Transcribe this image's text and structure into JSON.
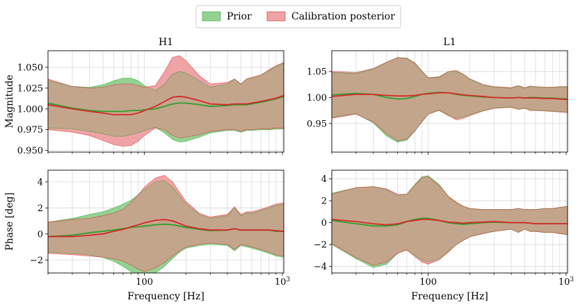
{
  "legend": {
    "entries": [
      {
        "label": "Prior",
        "color": "#2ca02c"
      },
      {
        "label": "Calibration posterior",
        "color": "#d62728"
      }
    ]
  },
  "colors": {
    "prior_fill": "#93d293",
    "post_fill": "#f0a3a6",
    "overlap_fill": "#c3a58c",
    "prior_line": "#2ca02c",
    "post_line": "#d62728"
  },
  "chart_data": [
    {
      "id": "h1-magnitude",
      "type": "area",
      "title": "H1",
      "xlabel": "",
      "ylabel": "Magnitude",
      "xscale": "log",
      "xlim": [
        20,
        1024
      ],
      "ylim": [
        0.948,
        1.07
      ],
      "yticks": [
        0.95,
        0.975,
        1.0,
        1.025,
        1.05
      ],
      "yticklabels": [
        "0.950",
        "0.975",
        "1.000",
        "1.025",
        "1.050"
      ],
      "xticks": [
        100,
        1000
      ],
      "xticklabels": [
        "",
        ""
      ],
      "x": [
        20,
        30,
        40,
        50,
        60,
        70,
        80,
        90,
        100,
        120,
        140,
        160,
        180,
        200,
        250,
        300,
        400,
        450,
        500,
        550,
        600,
        700,
        800,
        900,
        1024
      ],
      "series": [
        {
          "name": "Prior",
          "upper": [
            1.034,
            1.027,
            1.026,
            1.029,
            1.034,
            1.037,
            1.037,
            1.034,
            1.028,
            1.022,
            1.03,
            1.042,
            1.045,
            1.043,
            1.034,
            1.026,
            1.03,
            1.036,
            1.03,
            1.036,
            1.037,
            1.04,
            1.046,
            1.051,
            1.055
          ],
          "median": [
            1.007,
            1.001,
            0.998,
            0.997,
            0.997,
            0.997,
            0.998,
            0.998,
            0.999,
            1.0,
            1.003,
            1.006,
            1.007,
            1.007,
            1.005,
            1.003,
            1.004,
            1.005,
            1.005,
            1.005,
            1.006,
            1.008,
            1.01,
            1.012,
            1.015
          ],
          "lower": [
            0.977,
            0.976,
            0.973,
            0.97,
            0.967,
            0.967,
            0.969,
            0.971,
            0.974,
            0.978,
            0.971,
            0.963,
            0.96,
            0.961,
            0.966,
            0.971,
            0.974,
            0.974,
            0.972,
            0.974,
            0.974,
            0.975,
            0.975,
            0.976,
            0.976
          ]
        },
        {
          "name": "Calibration posterior",
          "upper": [
            1.036,
            1.027,
            1.025,
            1.026,
            1.029,
            1.03,
            1.03,
            1.028,
            1.026,
            1.028,
            1.045,
            1.062,
            1.064,
            1.058,
            1.04,
            1.03,
            1.032,
            1.036,
            1.03,
            1.036,
            1.038,
            1.041,
            1.047,
            1.052,
            1.056
          ],
          "median": [
            1.005,
            1.0,
            0.997,
            0.995,
            0.993,
            0.993,
            0.993,
            0.995,
            0.998,
            1.003,
            1.009,
            1.014,
            1.015,
            1.014,
            1.01,
            1.006,
            1.005,
            1.006,
            1.006,
            1.006,
            1.007,
            1.009,
            1.011,
            1.013,
            1.016
          ],
          "lower": [
            0.975,
            0.972,
            0.968,
            0.962,
            0.957,
            0.955,
            0.956,
            0.961,
            0.968,
            0.977,
            0.975,
            0.968,
            0.965,
            0.966,
            0.969,
            0.973,
            0.975,
            0.975,
            0.973,
            0.975,
            0.975,
            0.976,
            0.976,
            0.977,
            0.977
          ]
        }
      ]
    },
    {
      "id": "l1-magnitude",
      "type": "area",
      "title": "L1",
      "xlabel": "",
      "ylabel": "",
      "xscale": "log",
      "xlim": [
        20,
        1024
      ],
      "ylim": [
        0.895,
        1.09
      ],
      "yticks": [
        0.95,
        1.0,
        1.05
      ],
      "yticklabels": [
        "0.95",
        "1.00",
        "1.05"
      ],
      "xticks": [
        100,
        1000
      ],
      "xticklabels": [
        "",
        ""
      ],
      "x": [
        20,
        30,
        40,
        50,
        60,
        70,
        80,
        90,
        100,
        120,
        140,
        160,
        180,
        200,
        250,
        300,
        400,
        450,
        500,
        550,
        600,
        700,
        800,
        900,
        1024
      ],
      "series": [
        {
          "name": "Prior",
          "upper": [
            1.048,
            1.046,
            1.055,
            1.068,
            1.077,
            1.076,
            1.067,
            1.051,
            1.038,
            1.04,
            1.05,
            1.05,
            1.044,
            1.035,
            1.024,
            1.02,
            1.018,
            1.022,
            1.018,
            1.021,
            1.02,
            1.019,
            1.019,
            1.02,
            1.02
          ],
          "median": [
            1.005,
            1.008,
            1.006,
            1.0,
            0.997,
            0.998,
            1.002,
            1.006,
            1.008,
            1.01,
            1.009,
            1.006,
            1.004,
            1.003,
            1.001,
            1.0,
            0.999,
            1.0,
            0.999,
            1.0,
            1.0,
            0.999,
            0.999,
            0.998,
            0.997
          ],
          "lower": [
            0.962,
            0.969,
            0.951,
            0.926,
            0.914,
            0.918,
            0.935,
            0.953,
            0.968,
            0.975,
            0.965,
            0.96,
            0.963,
            0.967,
            0.975,
            0.98,
            0.982,
            0.978,
            0.98,
            0.976,
            0.976,
            0.975,
            0.974,
            0.973,
            0.972
          ]
        },
        {
          "name": "Calibration posterior",
          "upper": [
            1.05,
            1.048,
            1.056,
            1.068,
            1.077,
            1.075,
            1.066,
            1.05,
            1.038,
            1.039,
            1.05,
            1.052,
            1.045,
            1.036,
            1.025,
            1.021,
            1.019,
            1.023,
            1.019,
            1.022,
            1.021,
            1.02,
            1.02,
            1.021,
            1.021
          ],
          "median": [
            1.002,
            1.006,
            1.006,
            1.004,
            1.003,
            1.003,
            1.004,
            1.006,
            1.007,
            1.009,
            1.009,
            1.007,
            1.005,
            1.004,
            1.002,
            1.0,
            0.999,
            1.0,
            0.999,
            0.999,
            0.999,
            0.998,
            0.998,
            0.997,
            0.996
          ],
          "lower": [
            0.96,
            0.968,
            0.953,
            0.93,
            0.917,
            0.92,
            0.936,
            0.953,
            0.968,
            0.976,
            0.966,
            0.957,
            0.96,
            0.965,
            0.974,
            0.979,
            0.981,
            0.977,
            0.979,
            0.975,
            0.975,
            0.974,
            0.973,
            0.972,
            0.971
          ]
        }
      ]
    },
    {
      "id": "h1-phase",
      "type": "area",
      "title": "",
      "xlabel": "Frequency [Hz]",
      "ylabel": "Phase [deg]",
      "xscale": "log",
      "xlim": [
        20,
        1024
      ],
      "ylim": [
        -3.0,
        4.9
      ],
      "yticks": [
        -2,
        0,
        2,
        4
      ],
      "yticklabels": [
        "−2",
        "0",
        "2",
        "4"
      ],
      "xticks": [
        100,
        1000
      ],
      "xticklabels": [
        "100",
        "10³"
      ],
      "x": [
        20,
        30,
        40,
        50,
        60,
        70,
        80,
        90,
        100,
        120,
        140,
        160,
        180,
        200,
        250,
        300,
        400,
        450,
        500,
        550,
        600,
        700,
        800,
        900,
        1024
      ],
      "series": [
        {
          "name": "Prior",
          "upper": [
            0.9,
            1.2,
            1.5,
            1.7,
            2.0,
            2.3,
            2.6,
            3.0,
            3.4,
            4.0,
            4.1,
            3.6,
            2.9,
            2.3,
            1.5,
            1.2,
            1.4,
            2.0,
            1.4,
            1.6,
            1.6,
            1.8,
            2.0,
            2.2,
            2.3
          ],
          "median": [
            -0.2,
            -0.1,
            0.1,
            0.2,
            0.3,
            0.4,
            0.5,
            0.55,
            0.6,
            0.7,
            0.75,
            0.7,
            0.6,
            0.5,
            0.35,
            0.25,
            0.3,
            0.4,
            0.3,
            0.3,
            0.3,
            0.3,
            0.3,
            0.2,
            0.2
          ],
          "lower": [
            -1.4,
            -1.5,
            -1.6,
            -1.8,
            -2.1,
            -2.5,
            -2.9,
            -3.1,
            -3.2,
            -3.0,
            -2.5,
            -1.9,
            -1.4,
            -1.1,
            -0.9,
            -0.8,
            -0.9,
            -1.3,
            -0.9,
            -1.0,
            -1.1,
            -1.3,
            -1.5,
            -1.7,
            -1.8
          ]
        },
        {
          "name": "Calibration posterior",
          "upper": [
            0.9,
            1.1,
            1.2,
            1.4,
            1.6,
            1.9,
            2.4,
            3.0,
            3.6,
            4.3,
            4.5,
            4.0,
            3.2,
            2.5,
            1.6,
            1.3,
            1.5,
            2.1,
            1.5,
            1.7,
            1.7,
            1.9,
            2.1,
            2.3,
            2.4
          ],
          "median": [
            -0.2,
            -0.2,
            -0.1,
            0.0,
            0.2,
            0.35,
            0.55,
            0.7,
            0.85,
            1.05,
            1.1,
            1.0,
            0.8,
            0.6,
            0.4,
            0.3,
            0.3,
            0.4,
            0.3,
            0.3,
            0.3,
            0.3,
            0.3,
            0.25,
            0.2
          ],
          "lower": [
            -1.5,
            -1.6,
            -1.7,
            -1.8,
            -1.9,
            -2.1,
            -2.4,
            -2.7,
            -2.9,
            -2.6,
            -2.2,
            -1.7,
            -1.3,
            -1.0,
            -0.8,
            -0.7,
            -0.8,
            -1.2,
            -0.8,
            -0.9,
            -1.0,
            -1.2,
            -1.4,
            -1.6,
            -1.7
          ]
        }
      ]
    },
    {
      "id": "l1-phase",
      "type": "area",
      "title": "",
      "xlabel": "Frequency [Hz]",
      "ylabel": "",
      "xscale": "log",
      "xlim": [
        20,
        1024
      ],
      "ylim": [
        -4.6,
        4.8
      ],
      "yticks": [
        -4,
        -2,
        0,
        2,
        4
      ],
      "yticklabels": [
        "−4",
        "−2",
        "0",
        "2",
        "4"
      ],
      "xticks": [
        100,
        1000
      ],
      "xticklabels": [
        "100",
        "10³"
      ],
      "x": [
        20,
        30,
        40,
        50,
        60,
        70,
        80,
        90,
        100,
        120,
        140,
        160,
        180,
        200,
        250,
        300,
        400,
        450,
        500,
        550,
        600,
        700,
        800,
        900,
        1024
      ],
      "series": [
        {
          "name": "Prior",
          "upper": [
            2.7,
            3.2,
            3.3,
            3.0,
            2.5,
            2.6,
            3.5,
            4.2,
            4.3,
            3.5,
            2.4,
            1.8,
            1.5,
            1.3,
            1.2,
            1.2,
            1.2,
            1.3,
            1.2,
            1.2,
            1.2,
            1.3,
            1.3,
            1.4,
            1.5
          ],
          "median": [
            0.2,
            -0.1,
            -0.3,
            -0.3,
            -0.2,
            0.1,
            0.3,
            0.4,
            0.4,
            0.2,
            0.0,
            -0.1,
            -0.15,
            -0.1,
            0.0,
            0.05,
            0.0,
            0.0,
            0.0,
            -0.05,
            -0.1,
            -0.1,
            -0.1,
            -0.1,
            -0.1
          ],
          "lower": [
            -2.0,
            -3.3,
            -4.1,
            -3.8,
            -2.8,
            -2.5,
            -3.0,
            -3.4,
            -3.6,
            -3.3,
            -2.6,
            -2.0,
            -1.6,
            -1.3,
            -1.0,
            -0.8,
            -0.6,
            -0.9,
            -0.6,
            -0.8,
            -0.8,
            -0.9,
            -0.9,
            -1.0,
            -1.1
          ]
        },
        {
          "name": "Calibration posterior",
          "upper": [
            2.6,
            3.2,
            3.3,
            3.1,
            2.6,
            2.6,
            3.4,
            4.1,
            4.2,
            3.4,
            2.4,
            1.9,
            1.5,
            1.3,
            1.2,
            1.2,
            1.2,
            1.3,
            1.2,
            1.2,
            1.2,
            1.3,
            1.3,
            1.4,
            1.5
          ],
          "median": [
            0.3,
            0.1,
            -0.1,
            -0.2,
            -0.1,
            0.1,
            0.2,
            0.3,
            0.3,
            0.2,
            0.05,
            0.0,
            -0.05,
            0.0,
            0.05,
            0.1,
            0.0,
            0.0,
            0.0,
            -0.05,
            -0.1,
            -0.1,
            -0.1,
            -0.1,
            -0.1
          ],
          "lower": [
            -1.9,
            -3.2,
            -3.9,
            -3.6,
            -2.8,
            -2.5,
            -3.1,
            -3.6,
            -3.8,
            -3.4,
            -2.7,
            -2.0,
            -1.6,
            -1.3,
            -1.0,
            -0.8,
            -0.6,
            -0.9,
            -0.6,
            -0.8,
            -0.8,
            -0.9,
            -0.9,
            -1.0,
            -1.1
          ]
        }
      ]
    }
  ]
}
